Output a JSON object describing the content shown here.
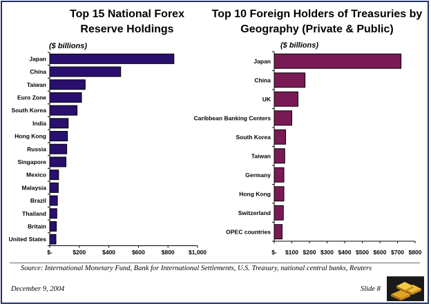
{
  "chart_data": [
    {
      "type": "bar",
      "orientation": "horizontal",
      "title": "Top 15 National Forex Reserve Holdings",
      "unit_label": "($ billions)",
      "categories": [
        "Japan",
        "China",
        "Taiwan",
        "Euro Zone",
        "South Korea",
        "India",
        "Hong Kong",
        "Russia",
        "Singapore",
        "Mexico",
        "Malaysia",
        "Brazil",
        "Thailand",
        "Britain",
        "United States"
      ],
      "values": [
        840,
        480,
        240,
        215,
        185,
        125,
        120,
        115,
        110,
        60,
        58,
        52,
        48,
        45,
        42
      ],
      "xlim": [
        0,
        1000
      ],
      "tick_values": [
        0,
        200,
        400,
        600,
        800,
        1000
      ],
      "tick_labels": [
        "$-",
        "$200",
        "$400",
        "$600",
        "$800",
        "$1,000"
      ],
      "bar_color": "#2a0f6e",
      "grid": false
    },
    {
      "type": "bar",
      "orientation": "horizontal",
      "title": "Top 10 Foreign Holders of Treasuries by Geography (Private & Public)",
      "unit_label": "($ billions)",
      "categories": [
        "Japan",
        "China",
        "UK",
        "Caribbean Banking Centers",
        "South Korea",
        "Taiwan",
        "Germany",
        "Hong Kong",
        "Switzerland",
        "OPEC countries"
      ],
      "values": [
        720,
        175,
        135,
        100,
        65,
        60,
        55,
        55,
        52,
        45
      ],
      "xlim": [
        0,
        800
      ],
      "tick_values": [
        0,
        100,
        200,
        300,
        400,
        500,
        600,
        700,
        800
      ],
      "tick_labels": [
        "$-",
        "$100",
        "$200",
        "$300",
        "$400",
        "$500",
        "$600",
        "$700",
        "$800"
      ],
      "bar_color": "#7a1a55",
      "grid": false
    }
  ],
  "footer": {
    "source": "Source: International Monetary Fund, Bank for International Settlements, U.S. Treasury, national central banks, Reuters",
    "date": "December 9, 2004",
    "slide": "Slide 8"
  },
  "logo_icon": "gold-bars-icon",
  "colors": {
    "frame": "#1e2f6e",
    "bar_left": "#2a0f6e",
    "bar_right": "#7a1a55"
  }
}
